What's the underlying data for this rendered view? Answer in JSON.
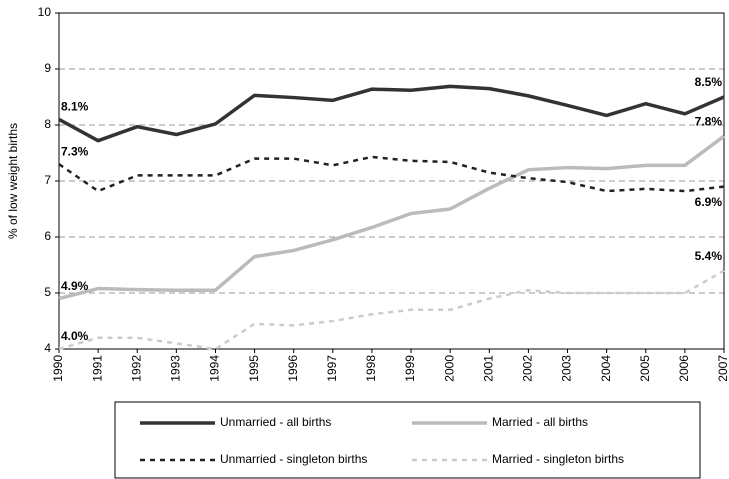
{
  "chart_data": {
    "type": "line",
    "y_label": "% of low weight births",
    "x": [
      1990,
      1991,
      1992,
      1993,
      1994,
      1995,
      1996,
      1997,
      1998,
      1999,
      2000,
      2001,
      2002,
      2003,
      2004,
      2005,
      2006,
      2007
    ],
    "xlim": [
      1990,
      2007
    ],
    "xticks": [
      1990,
      1991,
      1992,
      1993,
      1994,
      1995,
      1996,
      1997,
      1998,
      1999,
      2000,
      2001,
      2002,
      2003,
      2004,
      2005,
      2006,
      2007
    ],
    "ylim": [
      4,
      10
    ],
    "yticks": [
      4,
      5,
      6,
      7,
      8,
      9,
      10
    ],
    "grid": true,
    "series": [
      {
        "name": "Unmarried - all births",
        "color": "#333333",
        "dashed": false,
        "values": [
          8.1,
          7.72,
          7.97,
          7.83,
          8.02,
          8.53,
          8.49,
          8.44,
          8.64,
          8.62,
          8.69,
          8.65,
          8.52,
          8.35,
          8.17,
          8.38,
          8.2,
          8.5
        ],
        "value_labels": [
          "8.1%",
          null,
          null,
          null,
          null,
          null,
          null,
          null,
          null,
          null,
          null,
          null,
          null,
          null,
          null,
          null,
          null,
          "8.5%"
        ]
      },
      {
        "name": "Married - all births",
        "color": "#bbbbbb",
        "dashed": false,
        "values": [
          4.9,
          5.08,
          5.06,
          5.05,
          5.05,
          5.65,
          5.76,
          5.95,
          6.17,
          6.42,
          6.5,
          6.87,
          7.2,
          7.24,
          7.22,
          7.28,
          7.28,
          7.8
        ],
        "value_labels": [
          "4.9%",
          null,
          null,
          null,
          null,
          null,
          null,
          null,
          null,
          null,
          null,
          null,
          null,
          null,
          null,
          null,
          null,
          "7.8%"
        ]
      },
      {
        "name": "Unmarried - singleton births",
        "color": "#222222",
        "dashed": true,
        "values": [
          7.3,
          6.82,
          7.1,
          7.1,
          7.1,
          7.4,
          7.4,
          7.28,
          7.43,
          7.36,
          7.34,
          7.15,
          7.05,
          6.98,
          6.82,
          6.86,
          6.82,
          6.9
        ],
        "value_labels": [
          "7.3%",
          null,
          null,
          null,
          null,
          null,
          null,
          null,
          null,
          null,
          null,
          null,
          null,
          null,
          null,
          null,
          null,
          "6.9%"
        ]
      },
      {
        "name": "Married - singleton births",
        "color": "#cccccc",
        "dashed": true,
        "values": [
          4.0,
          4.2,
          4.2,
          4.1,
          4.0,
          4.45,
          4.42,
          4.5,
          4.62,
          4.7,
          4.7,
          4.9,
          5.05,
          5.0,
          5.0,
          5.0,
          5.0,
          5.4
        ],
        "value_labels": [
          "4.0%",
          null,
          null,
          null,
          null,
          null,
          null,
          null,
          null,
          null,
          null,
          null,
          null,
          null,
          null,
          null,
          null,
          "5.4%"
        ]
      }
    ],
    "legend": "bottom"
  }
}
